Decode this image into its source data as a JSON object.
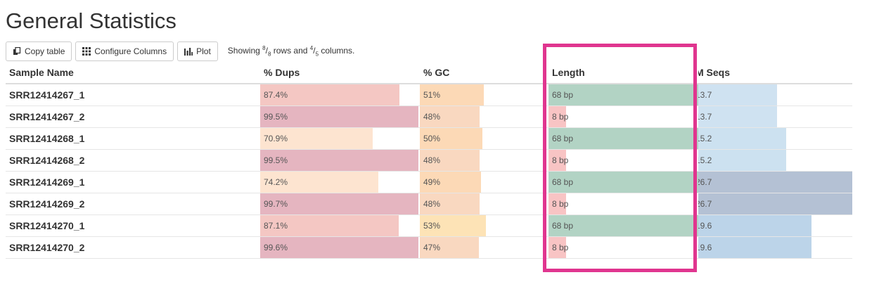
{
  "title": "General Statistics",
  "toolbar": {
    "copy_label": "Copy table",
    "configure_label": "Configure Columns",
    "plot_label": "Plot",
    "summary": {
      "prefix": "Showing ",
      "rows_shown": "8",
      "rows_total": "8",
      "rows_word": " rows and ",
      "cols_shown": "4",
      "cols_total": "5",
      "cols_word": " columns."
    }
  },
  "columns": {
    "sample": "Sample Name",
    "dups": "% Dups",
    "gc": "% GC",
    "length": "Length",
    "mseqs": "M Seqs"
  },
  "rows": [
    {
      "sample": "SRR12414267_1",
      "dups": "87.4%",
      "gc": "51%",
      "length": "68 bp",
      "mseqs": "13.7"
    },
    {
      "sample": "SRR12414267_2",
      "dups": "99.5%",
      "gc": "48%",
      "length": "8 bp",
      "mseqs": "13.7"
    },
    {
      "sample": "SRR12414268_1",
      "dups": "70.9%",
      "gc": "50%",
      "length": "68 bp",
      "mseqs": "15.2"
    },
    {
      "sample": "SRR12414268_2",
      "dups": "99.5%",
      "gc": "48%",
      "length": "8 bp",
      "mseqs": "15.2"
    },
    {
      "sample": "SRR12414269_1",
      "dups": "74.2%",
      "gc": "49%",
      "length": "68 bp",
      "mseqs": "26.7"
    },
    {
      "sample": "SRR12414269_2",
      "dups": "99.7%",
      "gc": "48%",
      "length": "8 bp",
      "mseqs": "26.7"
    },
    {
      "sample": "SRR12414270_1",
      "dups": "87.1%",
      "gc": "53%",
      "length": "68 bp",
      "mseqs": "19.6"
    },
    {
      "sample": "SRR12414270_2",
      "dups": "99.6%",
      "gc": "47%",
      "length": "8 bp",
      "mseqs": "19.6"
    }
  ],
  "bar_fractions": {
    "dups": [
      0.874,
      0.995,
      0.709,
      0.995,
      0.742,
      0.997,
      0.871,
      0.996
    ],
    "gc": [
      0.51,
      0.48,
      0.5,
      0.48,
      0.49,
      0.48,
      0.53,
      0.47
    ],
    "length": [
      1.0,
      0.118,
      1.0,
      0.118,
      1.0,
      0.118,
      1.0,
      0.118
    ],
    "mseqs": [
      0.513,
      0.513,
      0.569,
      0.569,
      1.0,
      1.0,
      0.734,
      0.734
    ]
  },
  "bar_colors": {
    "dups": [
      "#f4c7c3",
      "#e5b5c0",
      "#fde4d0",
      "#e5b5c0",
      "#fde4d0",
      "#e5b5c0",
      "#f4c7c3",
      "#e5b5c0"
    ],
    "gc": [
      "#fcd9b6",
      "#f9d8c0",
      "#fcd9b6",
      "#f9d8c0",
      "#fcd9b6",
      "#f9d8c0",
      "#fde3b6",
      "#f9d8c0"
    ],
    "length": [
      "#b2d3c4",
      "#f8c4c4",
      "#b2d3c4",
      "#f8c4c4",
      "#b2d3c4",
      "#f8c4c4",
      "#b2d3c4",
      "#f8c4c4"
    ],
    "mseqs": [
      "#cfe2f1",
      "#cfe2f1",
      "#cce1f0",
      "#cce1f0",
      "#b4c1d4",
      "#b4c1d4",
      "#bcd4e9",
      "#bcd4e9"
    ]
  },
  "highlight_color": "#e0358f",
  "icons": {
    "copy": "copy-icon",
    "configure": "grid-icon",
    "plot": "bar-chart-icon"
  }
}
